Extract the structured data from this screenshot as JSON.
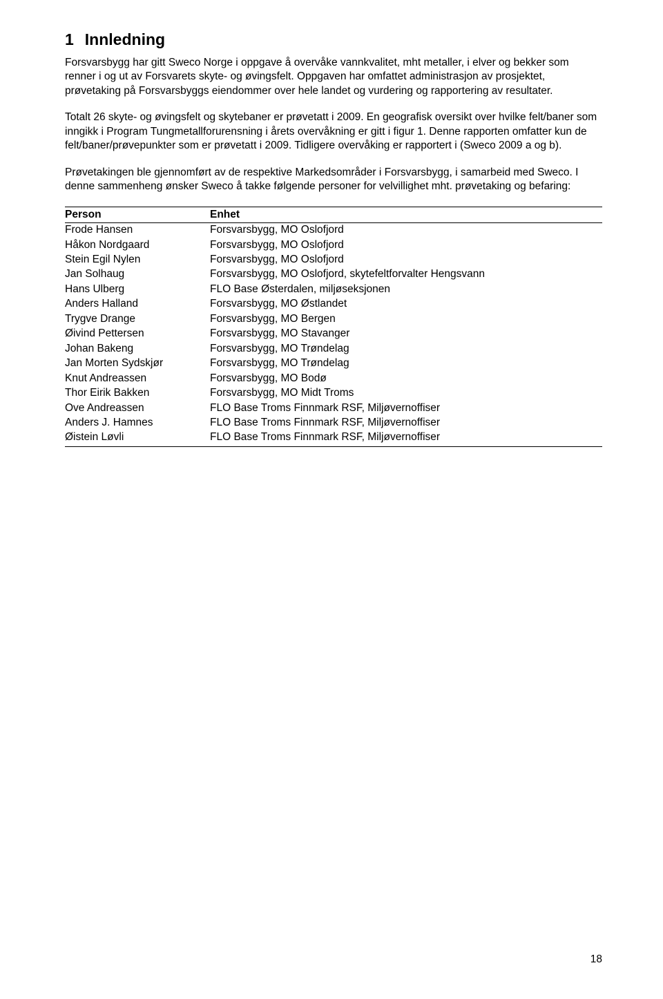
{
  "heading": {
    "number": "1",
    "title": "Innledning"
  },
  "paragraphs": {
    "p1": "Forsvarsbygg har gitt Sweco Norge i oppgave å overvåke vannkvalitet, mht metaller, i elver og bekker som renner i og ut av Forsvarets skyte- og øvingsfelt. Oppgaven har omfattet administrasjon av prosjektet, prøvetaking på Forsvarsbyggs eiendommer over hele landet og vurdering og rapportering av resultater.",
    "p2": "Totalt 26 skyte- og øvingsfelt og skytebaner er prøvetatt i 2009. En geografisk oversikt over hvilke felt/baner som inngikk i Program Tungmetallforurensning i årets overvåkning er gitt i figur 1. Denne rapporten omfatter kun de felt/baner/prøvepunkter som er prøvetatt i 2009. Tidligere overvåking er rapportert i (Sweco 2009 a og b).",
    "p3": "Prøvetakingen ble gjennomført av de respektive Markedsområder i Forsvarsbygg, i samarbeid med Sweco. I denne sammenheng ønsker Sweco å takke følgende personer for velvillighet mht. prøvetaking og befaring:"
  },
  "table": {
    "headers": {
      "person": "Person",
      "enhet": "Enhet"
    },
    "rows": [
      {
        "person": "Frode Hansen",
        "enhet": "Forsvarsbygg, MO Oslofjord"
      },
      {
        "person": "Håkon Nordgaard",
        "enhet": "Forsvarsbygg, MO Oslofjord"
      },
      {
        "person": "Stein Egil Nylen",
        "enhet": "Forsvarsbygg, MO Oslofjord"
      },
      {
        "person": "Jan Solhaug",
        "enhet": "Forsvarsbygg, MO Oslofjord, skytefeltforvalter Hengsvann"
      },
      {
        "person": "Hans Ulberg",
        "enhet": "FLO Base Østerdalen, miljøseksjonen"
      },
      {
        "person": "Anders Halland",
        "enhet": "Forsvarsbygg, MO Østlandet"
      },
      {
        "person": "Trygve Drange",
        "enhet": "Forsvarsbygg, MO Bergen"
      },
      {
        "person": "Øivind Pettersen",
        "enhet": "Forsvarsbygg, MO Stavanger"
      },
      {
        "person": "Johan Bakeng",
        "enhet": "Forsvarsbygg, MO Trøndelag"
      },
      {
        "person": "Jan Morten Sydskjør",
        "enhet": "Forsvarsbygg, MO Trøndelag"
      },
      {
        "person": "Knut Andreassen",
        "enhet": "Forsvarsbygg, MO Bodø"
      },
      {
        "person": "Thor Eirik Bakken",
        "enhet": "Forsvarsbygg, MO Midt Troms"
      },
      {
        "person": "Ove Andreassen",
        "enhet": "FLO Base Troms Finnmark RSF, Miljøvernoffiser"
      },
      {
        "person": "Anders J. Hamnes",
        "enhet": "FLO Base Troms Finnmark RSF, Miljøvernoffiser"
      },
      {
        "person": "Øistein Løvli",
        "enhet": "FLO Base Troms Finnmark RSF, Miljøvernoffiser"
      }
    ]
  },
  "page_number": "18"
}
